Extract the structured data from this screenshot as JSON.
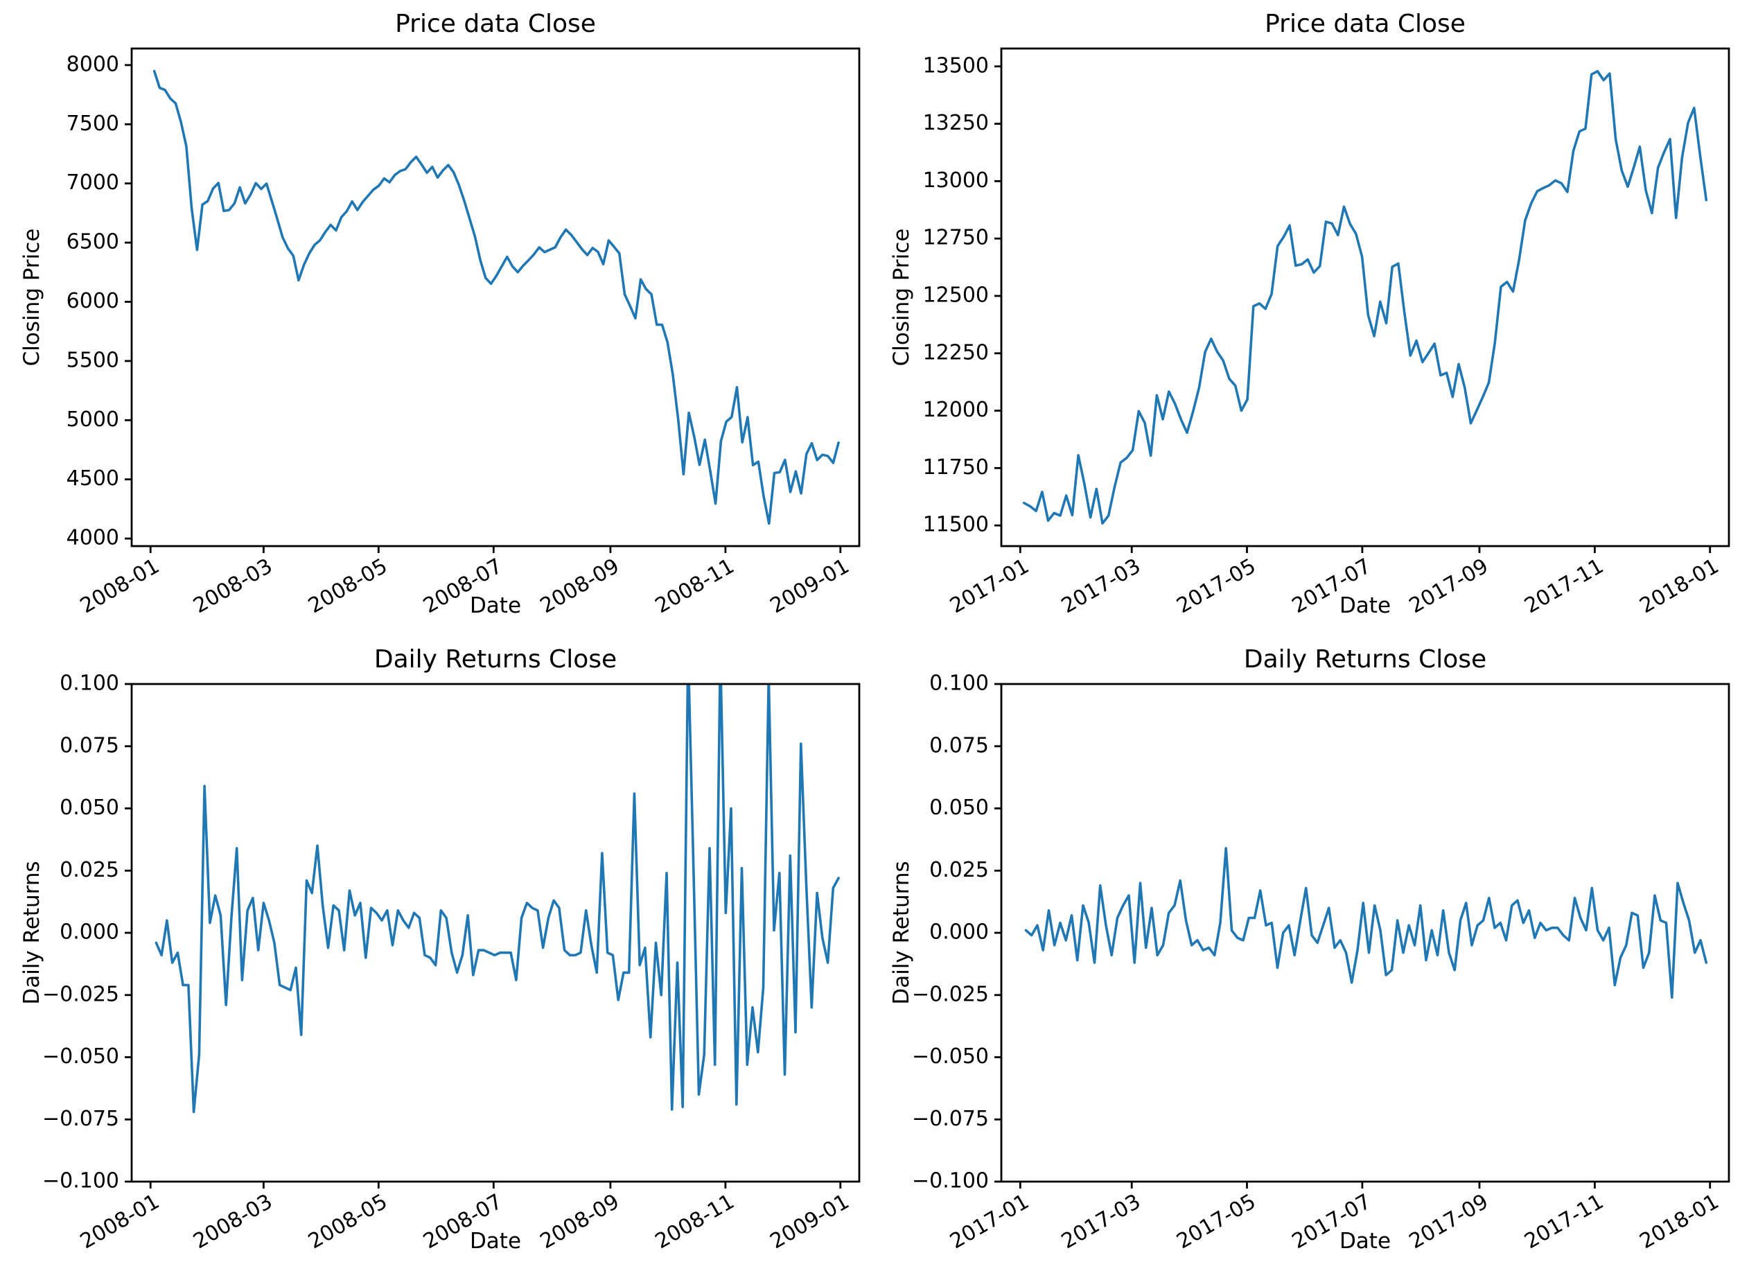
{
  "figure": {
    "background": "#ffffff",
    "line_color": "#1f77b4",
    "axis_color": "#000000",
    "text_color": "#000000"
  },
  "chart_data": [
    {
      "type": "line",
      "title": "Price data Close",
      "xlabel": "Date",
      "ylabel": "Closing Price",
      "legend": "none",
      "grid": false,
      "x_tick_labels": [
        "2008-01",
        "2008-03",
        "2008-05",
        "2008-07",
        "2008-09",
        "2008-11",
        "2009-01"
      ],
      "x_tick_days": [
        0,
        60,
        121,
        182,
        244,
        305,
        366
      ],
      "xlim": [
        -10,
        376
      ],
      "y_tick_labels": [
        "4000",
        "4500",
        "5000",
        "5500",
        "6000",
        "6500",
        "7000",
        "7500",
        "8000"
      ],
      "y_tick_values": [
        4000,
        4500,
        5000,
        5500,
        6000,
        6500,
        7000,
        7500,
        8000
      ],
      "ylim": [
        3936,
        8140
      ],
      "x_range_days": [
        2,
        365
      ],
      "values": [
        7949,
        7808,
        7790,
        7717,
        7676,
        7517,
        7314,
        6790,
        6439,
        6821,
        6851,
        6957,
        7004,
        6768,
        6775,
        6832,
        6967,
        6832,
        6905,
        7003,
        6953,
        6998,
        6850,
        6700,
        6545,
        6452,
        6390,
        6182,
        6312,
        6410,
        6482,
        6520,
        6590,
        6650,
        6603,
        6715,
        6765,
        6848,
        6776,
        6844,
        6896,
        6948,
        6980,
        7043,
        7010,
        7072,
        7105,
        7120,
        7180,
        7225,
        7160,
        7090,
        7140,
        7050,
        7110,
        7155,
        7095,
        6985,
        6850,
        6700,
        6550,
        6350,
        6200,
        6153,
        6220,
        6300,
        6380,
        6300,
        6250,
        6305,
        6350,
        6400,
        6460,
        6420,
        6440,
        6460,
        6545,
        6610,
        6565,
        6505,
        6445,
        6395,
        6455,
        6422,
        6318,
        6518,
        6465,
        6408,
        6064,
        5965,
        5861,
        6189,
        6107,
        6063,
        5807,
        5806,
        5660,
        5387,
        5013,
        4544,
        5062,
        4861,
        4622,
        4835,
        4571,
        4295,
        4823,
        4987,
        5026,
        5278,
        4813,
        5025,
        4620,
        4649,
        4354,
        4127,
        4554,
        4560,
        4665,
        4394,
        4567,
        4381,
        4715,
        4805,
        4663,
        4708,
        4697,
        4639,
        4810
      ]
    },
    {
      "type": "line",
      "title": "Price data Close",
      "xlabel": "Date",
      "ylabel": "Closing Price",
      "legend": "none",
      "grid": false,
      "x_tick_labels": [
        "2017-01",
        "2017-03",
        "2017-05",
        "2017-07",
        "2017-09",
        "2017-11",
        "2018-01"
      ],
      "x_tick_days": [
        0,
        59,
        120,
        181,
        243,
        304,
        365
      ],
      "xlim": [
        -10,
        375
      ],
      "y_tick_labels": [
        "11500",
        "11750",
        "12000",
        "12250",
        "12500",
        "12750",
        "13000",
        "13250",
        "13500"
      ],
      "y_tick_values": [
        11500,
        11750,
        12000,
        12250,
        12500,
        12750,
        13000,
        13250,
        13500
      ],
      "ylim": [
        11410,
        13578
      ],
      "x_range_days": [
        2,
        363
      ],
      "values": [
        11598,
        11584,
        11563,
        11646,
        11521,
        11554,
        11543,
        11630,
        11545,
        11806,
        11681,
        11535,
        11659,
        11509,
        11543,
        11667,
        11774,
        11794,
        11828,
        11998,
        11947,
        11804,
        12067,
        11963,
        12083,
        12031,
        11962,
        11904,
        11996,
        12100,
        12256,
        12313,
        12257,
        12218,
        12139,
        12109,
        12000,
        12049,
        12455,
        12467,
        12444,
        12508,
        12717,
        12757,
        12807,
        12632,
        12638,
        12659,
        12602,
        12630,
        12823,
        12816,
        12765,
        12889,
        12814,
        12770,
        12671,
        12416,
        12325,
        12475,
        12381,
        12627,
        12641,
        12430,
        12240,
        12305,
        12212,
        12251,
        12292,
        12154,
        12165,
        12060,
        12203,
        12100,
        11945,
        12002,
        12060,
        12123,
        12297,
        12540,
        12561,
        12519,
        12657,
        12829,
        12903,
        12956,
        12970,
        12982,
        13003,
        12991,
        12953,
        13133,
        13217,
        13229,
        13465,
        13479,
        13440,
        13469,
        13183,
        13047,
        12976,
        13060,
        13150,
        12960,
        12861,
        13058,
        13125,
        13183,
        12840,
        13103,
        13255,
        13319,
        13109,
        12918
      ]
    },
    {
      "type": "line",
      "title": "Daily Returns Close",
      "xlabel": "Date",
      "ylabel": "Daily Returns",
      "legend": "none",
      "grid": false,
      "x_tick_labels": [
        "2008-01",
        "2008-03",
        "2008-05",
        "2008-07",
        "2008-09",
        "2008-11",
        "2009-01"
      ],
      "x_tick_days": [
        0,
        60,
        121,
        182,
        244,
        305,
        366
      ],
      "xlim": [
        -10,
        376
      ],
      "y_tick_labels": [
        "0.100",
        "0.075",
        "0.050",
        "0.025",
        "0.000",
        "−0.025",
        "−0.050",
        "−0.075",
        "−0.100"
      ],
      "y_tick_values": [
        0.1,
        0.075,
        0.05,
        0.025,
        0.0,
        -0.025,
        -0.05,
        -0.075,
        -0.1
      ],
      "ylim": [
        -0.1,
        0.1
      ],
      "x_range_days": [
        3,
        365
      ],
      "values": [
        -0.004,
        -0.009,
        0.005,
        -0.012,
        -0.008,
        -0.021,
        -0.021,
        -0.072,
        -0.049,
        0.059,
        0.004,
        0.015,
        0.007,
        -0.029,
        0.006,
        0.034,
        -0.019,
        0.009,
        0.014,
        -0.007,
        0.012,
        0.005,
        -0.004,
        -0.021,
        -0.022,
        -0.023,
        -0.014,
        -0.041,
        0.021,
        0.016,
        0.035,
        0.011,
        -0.006,
        0.011,
        0.009,
        -0.007,
        0.017,
        0.007,
        0.012,
        -0.01,
        0.01,
        0.008,
        0.005,
        0.009,
        -0.005,
        0.009,
        0.005,
        0.002,
        0.008,
        0.006,
        -0.009,
        -0.01,
        -0.013,
        0.009,
        0.006,
        -0.008,
        -0.016,
        -0.009,
        0.007,
        -0.017,
        -0.007,
        -0.007,
        -0.008,
        -0.009,
        -0.008,
        -0.008,
        -0.008,
        -0.019,
        0.006,
        0.012,
        0.01,
        0.009,
        -0.006,
        0.006,
        0.013,
        0.01,
        -0.007,
        -0.009,
        -0.009,
        -0.008,
        0.009,
        -0.005,
        -0.016,
        0.032,
        -0.008,
        -0.009,
        -0.027,
        -0.016,
        -0.016,
        0.056,
        -0.013,
        -0.006,
        -0.042,
        -0.004,
        -0.025,
        0.024,
        -0.071,
        -0.012,
        -0.07,
        0.114,
        0.027,
        -0.065,
        -0.049,
        0.034,
        -0.053,
        0.113,
        0.008,
        0.05,
        -0.069,
        0.026,
        -0.053,
        -0.03,
        -0.048,
        -0.022,
        0.103,
        0.001,
        0.024,
        -0.057,
        0.031,
        -0.04,
        0.076,
        0.019,
        -0.03,
        0.016,
        -0.002,
        -0.012,
        0.018,
        0.022
      ]
    },
    {
      "type": "line",
      "title": "Daily Returns Close",
      "xlabel": "Date",
      "ylabel": "Daily Returns",
      "legend": "none",
      "grid": false,
      "x_tick_labels": [
        "2017-01",
        "2017-03",
        "2017-05",
        "2017-07",
        "2017-09",
        "2017-11",
        "2018-01"
      ],
      "x_tick_days": [
        0,
        59,
        120,
        181,
        243,
        304,
        365
      ],
      "xlim": [
        -10,
        375
      ],
      "y_tick_labels": [
        "0.100",
        "0.075",
        "0.050",
        "0.025",
        "0.000",
        "−0.025",
        "−0.050",
        "−0.075",
        "−0.100"
      ],
      "y_tick_values": [
        0.1,
        0.075,
        0.05,
        0.025,
        0.0,
        -0.025,
        -0.05,
        -0.075,
        -0.1
      ],
      "ylim": [
        -0.1,
        0.1
      ],
      "x_range_days": [
        3,
        363
      ],
      "values": [
        0.001,
        -0.001,
        0.003,
        -0.007,
        0.009,
        -0.005,
        0.004,
        -0.003,
        0.007,
        -0.011,
        0.011,
        0.004,
        -0.012,
        0.019,
        0.003,
        -0.009,
        0.006,
        0.011,
        0.015,
        -0.012,
        0.02,
        -0.006,
        0.01,
        -0.009,
        -0.005,
        0.008,
        0.011,
        0.021,
        0.005,
        -0.005,
        -0.003,
        -0.007,
        -0.006,
        -0.009,
        0.004,
        0.034,
        0.001,
        -0.002,
        -0.003,
        0.006,
        0.006,
        0.017,
        0.003,
        0.004,
        -0.014,
        0.0,
        0.003,
        -0.009,
        0.005,
        0.018,
        -0.001,
        -0.004,
        0.003,
        0.01,
        -0.006,
        -0.003,
        -0.008,
        -0.02,
        -0.007,
        0.012,
        -0.008,
        0.011,
        0.001,
        -0.017,
        -0.015,
        0.005,
        -0.008,
        0.003,
        -0.005,
        0.011,
        -0.011,
        0.001,
        -0.009,
        0.009,
        -0.008,
        -0.015,
        0.005,
        0.012,
        -0.005,
        0.003,
        0.005,
        0.014,
        0.002,
        0.004,
        -0.003,
        0.011,
        0.013,
        0.004,
        0.009,
        -0.002,
        0.004,
        0.001,
        0.002,
        0.002,
        -0.001,
        -0.003,
        0.014,
        0.006,
        0.001,
        0.018,
        0.001,
        -0.003,
        0.002,
        -0.021,
        -0.01,
        -0.005,
        0.008,
        0.007,
        -0.014,
        -0.008,
        0.015,
        0.005,
        0.004,
        -0.026,
        0.02,
        0.012,
        0.005,
        -0.008,
        -0.003,
        -0.012
      ]
    }
  ]
}
